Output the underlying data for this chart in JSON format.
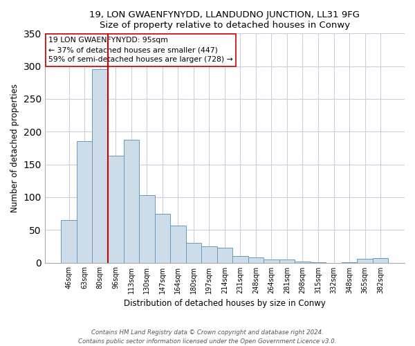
{
  "title": "19, LON GWAENFYNYDD, LLANDUDNO JUNCTION, LL31 9FG",
  "subtitle": "Size of property relative to detached houses in Conwy",
  "xlabel": "Distribution of detached houses by size in Conwy",
  "ylabel": "Number of detached properties",
  "bar_labels": [
    "46sqm",
    "63sqm",
    "80sqm",
    "96sqm",
    "113sqm",
    "130sqm",
    "147sqm",
    "164sqm",
    "180sqm",
    "197sqm",
    "214sqm",
    "231sqm",
    "248sqm",
    "264sqm",
    "281sqm",
    "298sqm",
    "315sqm",
    "332sqm",
    "348sqm",
    "365sqm",
    "382sqm"
  ],
  "bar_values": [
    65,
    185,
    295,
    163,
    188,
    103,
    75,
    57,
    30,
    25,
    23,
    10,
    8,
    5,
    5,
    2,
    1,
    0,
    1,
    6,
    7
  ],
  "bar_color": "#ccdce8",
  "bar_edge_color": "#6699bb",
  "vline_x": 2.5,
  "vline_color": "#cc0000",
  "annotation_text": "19 LON GWAENFYNYDD: 95sqm\n← 37% of detached houses are smaller (447)\n59% of semi-detached houses are larger (728) →",
  "annotation_box_edge": "#cc0000",
  "ylim": [
    0,
    350
  ],
  "yticks": [
    0,
    50,
    100,
    150,
    200,
    250,
    300,
    350
  ],
  "footer_line1": "Contains HM Land Registry data © Crown copyright and database right 2024.",
  "footer_line2": "Contains public sector information licensed under the Open Government Licence v3.0.",
  "background_color": "#ffffff",
  "grid_color": "#ccccdd"
}
